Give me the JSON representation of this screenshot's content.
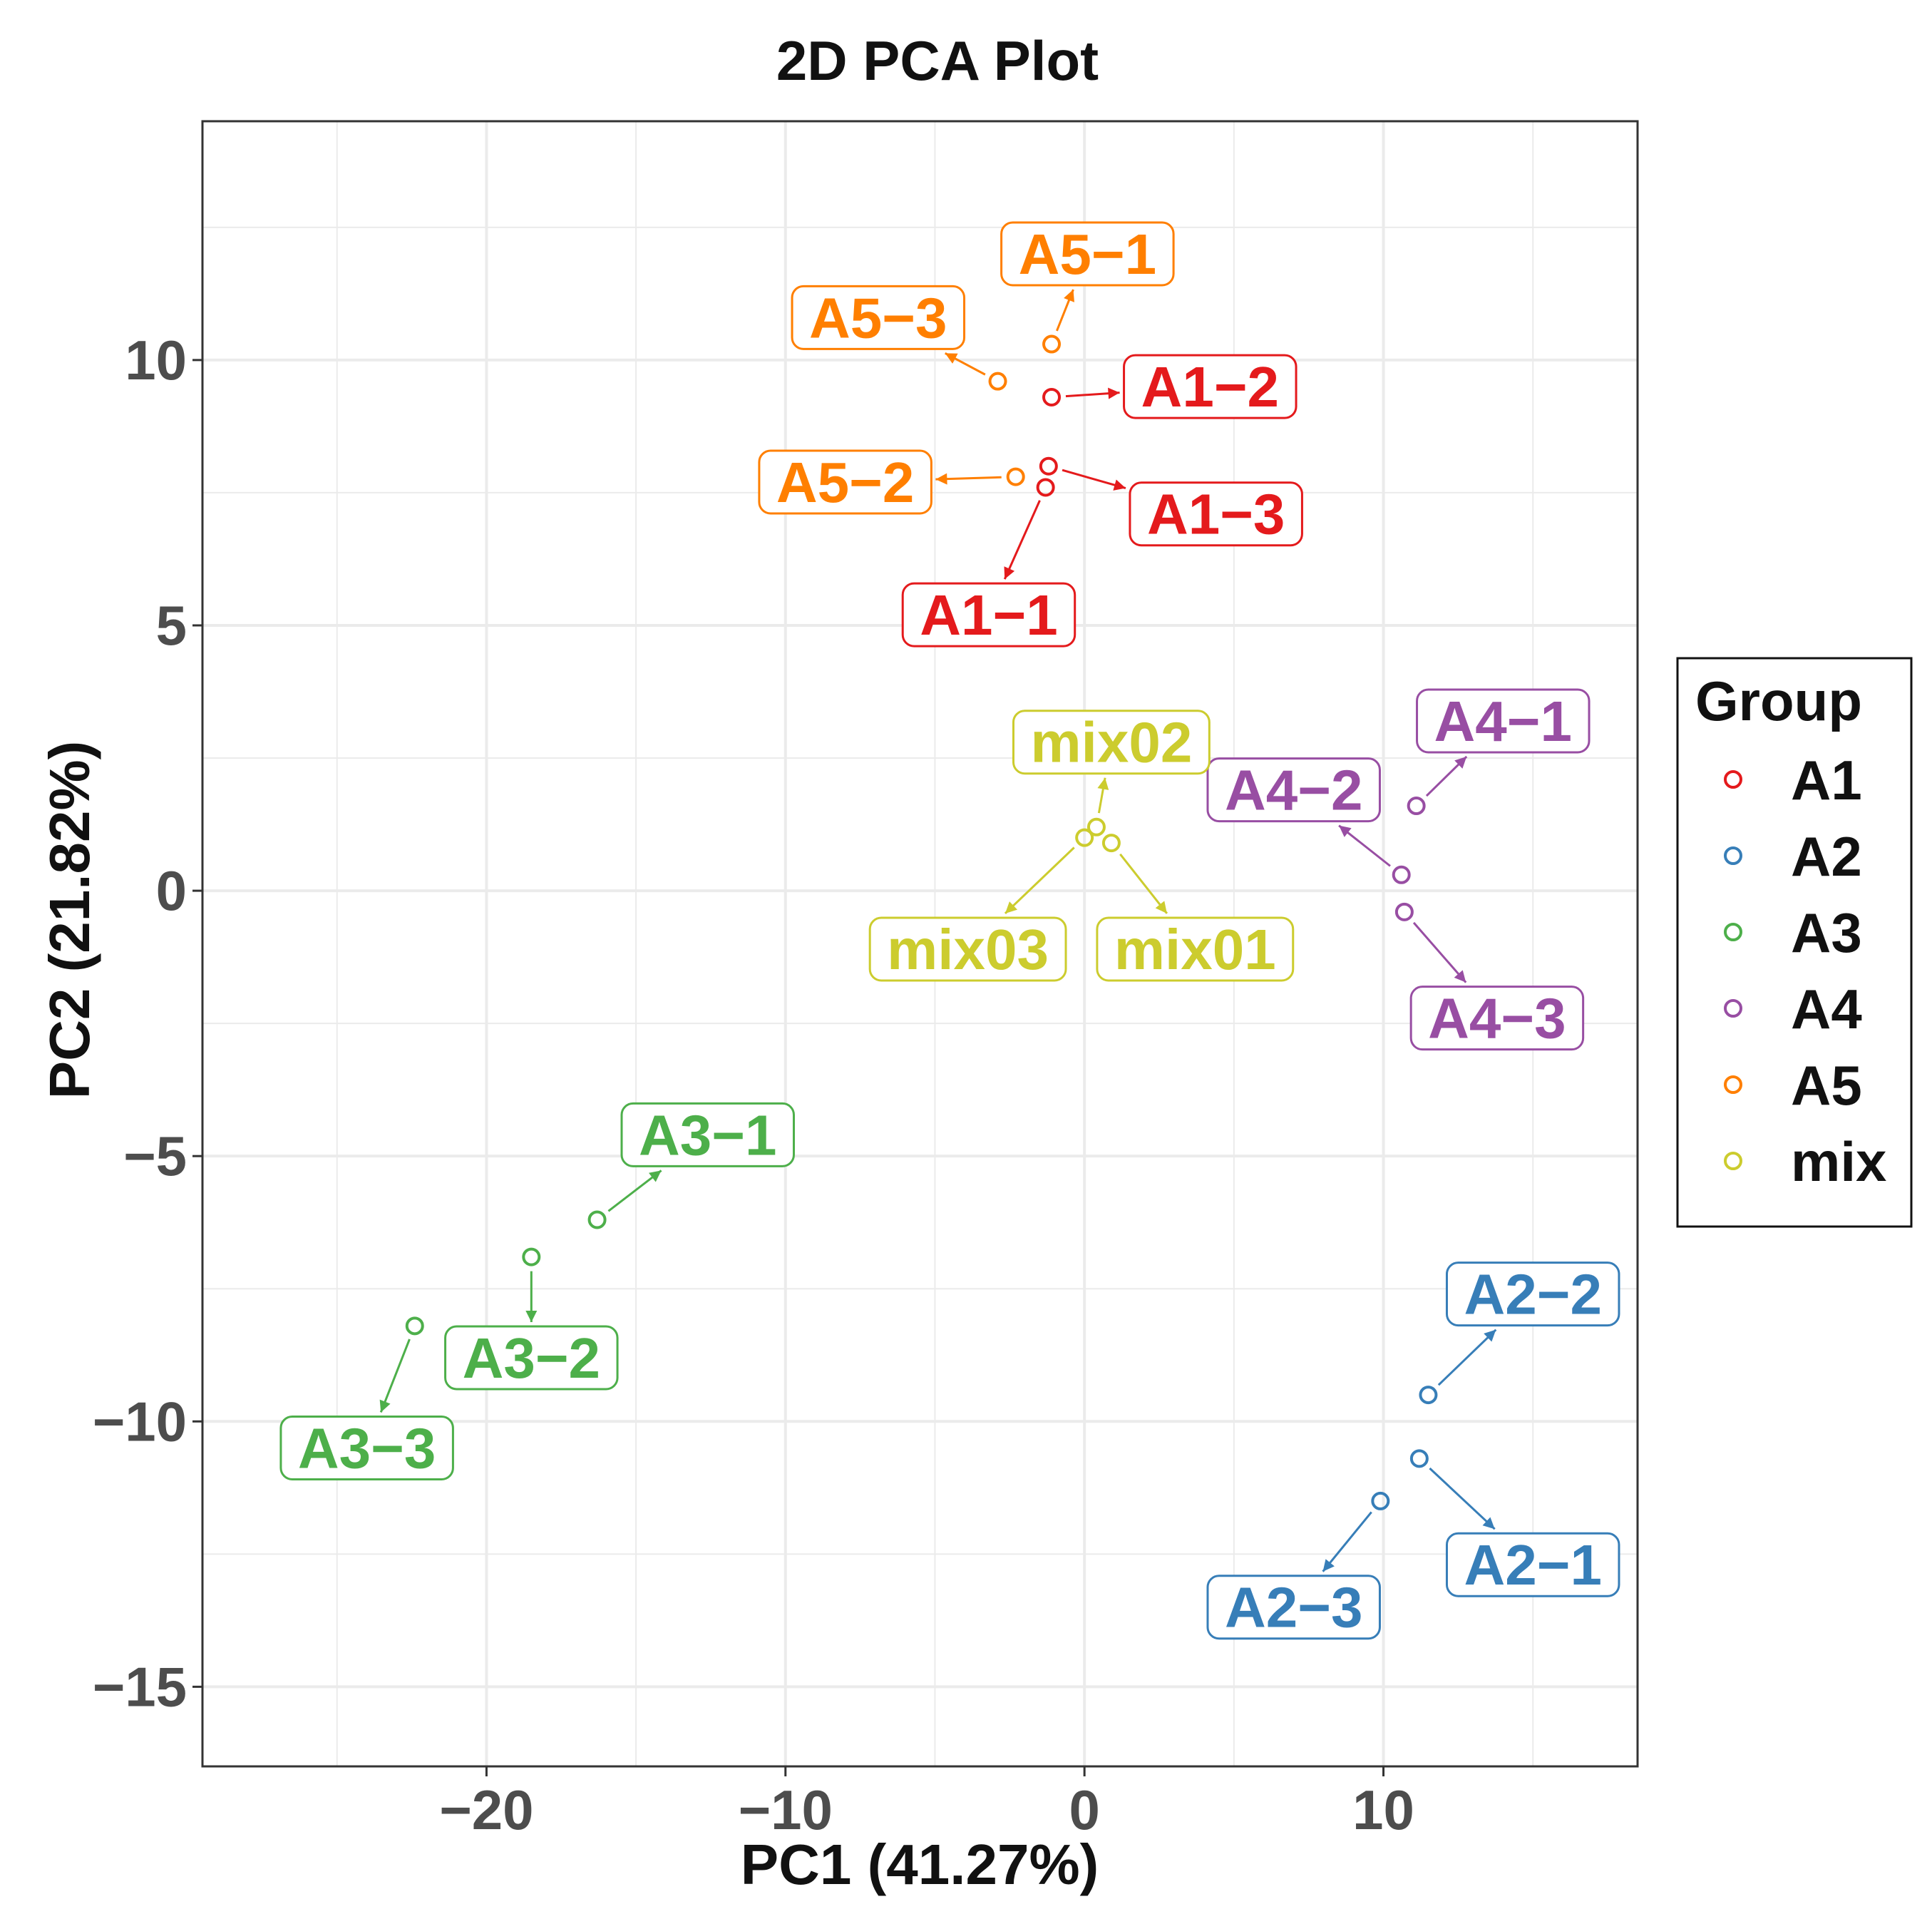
{
  "chart_data": {
    "type": "scatter",
    "title": "2D PCA Plot",
    "xlabel": "PC1 (41.27%)",
    "ylabel": "PC2 (21.82%)",
    "xlim": [
      -29.5,
      18.5
    ],
    "ylim": [
      -16.5,
      14.5
    ],
    "xticks": [
      -20,
      -10,
      0,
      10
    ],
    "xtick_labels": [
      "−20",
      "−10",
      "0",
      "10"
    ],
    "yticks": [
      -15,
      -10,
      -5,
      0,
      5,
      10
    ],
    "ytick_labels": [
      "−15",
      "−10",
      "−5",
      "0",
      "5",
      "10"
    ],
    "grid": true,
    "legend": {
      "title": "Group",
      "position": "right",
      "entries": [
        {
          "name": "A1",
          "color": "#e41a1c"
        },
        {
          "name": "A2",
          "color": "#377eb8"
        },
        {
          "name": "A3",
          "color": "#4daf4a"
        },
        {
          "name": "A4",
          "color": "#984ea3"
        },
        {
          "name": "A5",
          "color": "#ff7f00"
        },
        {
          "name": "mix",
          "color": "#cccc2e"
        }
      ]
    },
    "points": [
      {
        "label": "A1−1",
        "group": "A1",
        "x": -1.3,
        "y": 7.6,
        "lx": -3.2,
        "ly": 5.2
      },
      {
        "label": "A1−2",
        "group": "A1",
        "x": -1.1,
        "y": 9.3,
        "lx": 4.2,
        "ly": 9.5
      },
      {
        "label": "A1−3",
        "group": "A1",
        "x": -1.2,
        "y": 8.0,
        "lx": 4.4,
        "ly": 7.1
      },
      {
        "label": "A2−1",
        "group": "A2",
        "x": 11.2,
        "y": -10.7,
        "lx": 15.0,
        "ly": -12.7
      },
      {
        "label": "A2−2",
        "group": "A2",
        "x": 11.5,
        "y": -9.5,
        "lx": 15.0,
        "ly": -7.6
      },
      {
        "label": "A2−3",
        "group": "A2",
        "x": 9.9,
        "y": -11.5,
        "lx": 7.0,
        "ly": -13.5
      },
      {
        "label": "A3−1",
        "group": "A3",
        "x": -16.3,
        "y": -6.2,
        "lx": -12.6,
        "ly": -4.6
      },
      {
        "label": "A3−2",
        "group": "A3",
        "x": -18.5,
        "y": -6.9,
        "lx": -18.5,
        "ly": -8.8
      },
      {
        "label": "A3−3",
        "group": "A3",
        "x": -22.4,
        "y": -8.2,
        "lx": -24.0,
        "ly": -10.5
      },
      {
        "label": "A4−1",
        "group": "A4",
        "x": 11.1,
        "y": 1.6,
        "lx": 14.0,
        "ly": 3.2
      },
      {
        "label": "A4−2",
        "group": "A4",
        "x": 10.6,
        "y": 0.3,
        "lx": 7.0,
        "ly": 1.9
      },
      {
        "label": "A4−3",
        "group": "A4",
        "x": 10.7,
        "y": -0.4,
        "lx": 13.8,
        "ly": -2.4
      },
      {
        "label": "A5−1",
        "group": "A5",
        "x": -1.1,
        "y": 10.3,
        "lx": 0.1,
        "ly": 12.0
      },
      {
        "label": "A5−2",
        "group": "A5",
        "x": -2.3,
        "y": 7.8,
        "lx": -8.0,
        "ly": 7.7
      },
      {
        "label": "A5−3",
        "group": "A5",
        "x": -2.9,
        "y": 9.6,
        "lx": -6.9,
        "ly": 10.8
      },
      {
        "label": "mix01",
        "group": "mix",
        "x": 0.9,
        "y": 0.9,
        "lx": 3.7,
        "ly": -1.1
      },
      {
        "label": "mix02",
        "group": "mix",
        "x": 0.4,
        "y": 1.2,
        "lx": 0.9,
        "ly": 2.8
      },
      {
        "label": "mix03",
        "group": "mix",
        "x": 0.0,
        "y": 1.0,
        "lx": -3.9,
        "ly": -1.1
      }
    ]
  }
}
